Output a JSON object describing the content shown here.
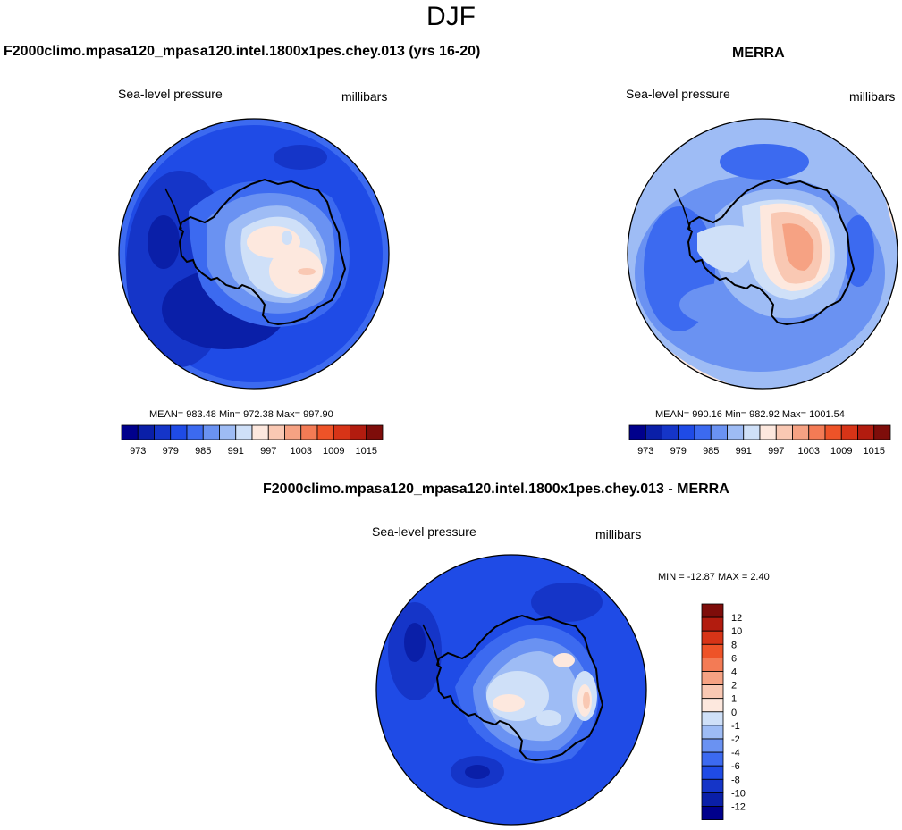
{
  "figure_title": "DJF",
  "panels": {
    "model": {
      "title": "F2000climo.mpasa120_mpasa120.intel.1800x1pes.chey.013 (yrs 16-20)",
      "left_label": "Sea-level pressure",
      "right_label": "millibars",
      "stats": "MEAN= 983.48  Min= 972.38  Max= 997.90"
    },
    "obs": {
      "title": "MERRA",
      "left_label": "Sea-level pressure",
      "right_label": "millibars",
      "stats": "MEAN= 990.16  Min= 982.92  Max= 1001.54"
    },
    "diff": {
      "title": "F2000climo.mpasa120_mpasa120.intel.1800x1pes.chey.013 - MERRA",
      "left_label": "Sea-level pressure",
      "right_label": "millibars",
      "stats": "MIN = -12.87 MAX =  2.40"
    }
  },
  "chart_data": [
    {
      "type": "heatmap",
      "projection": "south-polar-stereographic",
      "title": "F2000climo.mpasa120_mpasa120.intel.1800x1pes.chey.013 (yrs 16-20)",
      "variable": "Sea-level pressure",
      "units": "millibars",
      "mean": 983.48,
      "min": 972.38,
      "max": 997.9,
      "colorbar": {
        "levels": [
          973,
          976,
          979,
          982,
          985,
          988,
          991,
          994,
          997,
          1000,
          1003,
          1006,
          1009,
          1012,
          1015
        ],
        "tick_labels": [
          "973",
          "979",
          "985",
          "991",
          "997",
          "1003",
          "1009",
          "1015"
        ],
        "colors": [
          "#00008c",
          "#0a1fa8",
          "#1535c8",
          "#1f4be6",
          "#3c6af0",
          "#6a92f2",
          "#9ebcf5",
          "#cfe0f8",
          "#fde8de",
          "#f9c8b3",
          "#f6a283",
          "#f37b55",
          "#ee5328",
          "#d73417",
          "#b21c0f",
          "#7e0d0a"
        ]
      }
    },
    {
      "type": "heatmap",
      "projection": "south-polar-stereographic",
      "title": "MERRA",
      "variable": "Sea-level pressure",
      "units": "millibars",
      "mean": 990.16,
      "min": 982.92,
      "max": 1001.54,
      "colorbar": {
        "levels": [
          973,
          976,
          979,
          982,
          985,
          988,
          991,
          994,
          997,
          1000,
          1003,
          1006,
          1009,
          1012,
          1015
        ],
        "tick_labels": [
          "973",
          "979",
          "985",
          "991",
          "997",
          "1003",
          "1009",
          "1015"
        ],
        "colors": [
          "#00008c",
          "#0a1fa8",
          "#1535c8",
          "#1f4be6",
          "#3c6af0",
          "#6a92f2",
          "#9ebcf5",
          "#cfe0f8",
          "#fde8de",
          "#f9c8b3",
          "#f6a283",
          "#f37b55",
          "#ee5328",
          "#d73417",
          "#b21c0f",
          "#7e0d0a"
        ]
      }
    },
    {
      "type": "heatmap",
      "projection": "south-polar-stereographic",
      "title": "F2000climo.mpasa120_mpasa120.intel.1800x1pes.chey.013 - MERRA",
      "variable": "Sea-level pressure",
      "units": "millibars",
      "min": -12.87,
      "max": 2.4,
      "colorbar": {
        "orientation": "vertical",
        "tick_labels": [
          "12",
          "10",
          "8",
          "6",
          "4",
          "2",
          "1",
          "0",
          "-1",
          "-2",
          "-4",
          "-6",
          "-8",
          "-10",
          "-12"
        ],
        "colors": [
          "#7e0d0a",
          "#b21c0f",
          "#d73417",
          "#ee5328",
          "#f37b55",
          "#f6a283",
          "#f9c8b3",
          "#fde8de",
          "#cfe0f8",
          "#9ebcf5",
          "#6a92f2",
          "#3c6af0",
          "#1f4be6",
          "#1535c8",
          "#0a1fa8",
          "#00008c"
        ]
      }
    }
  ]
}
